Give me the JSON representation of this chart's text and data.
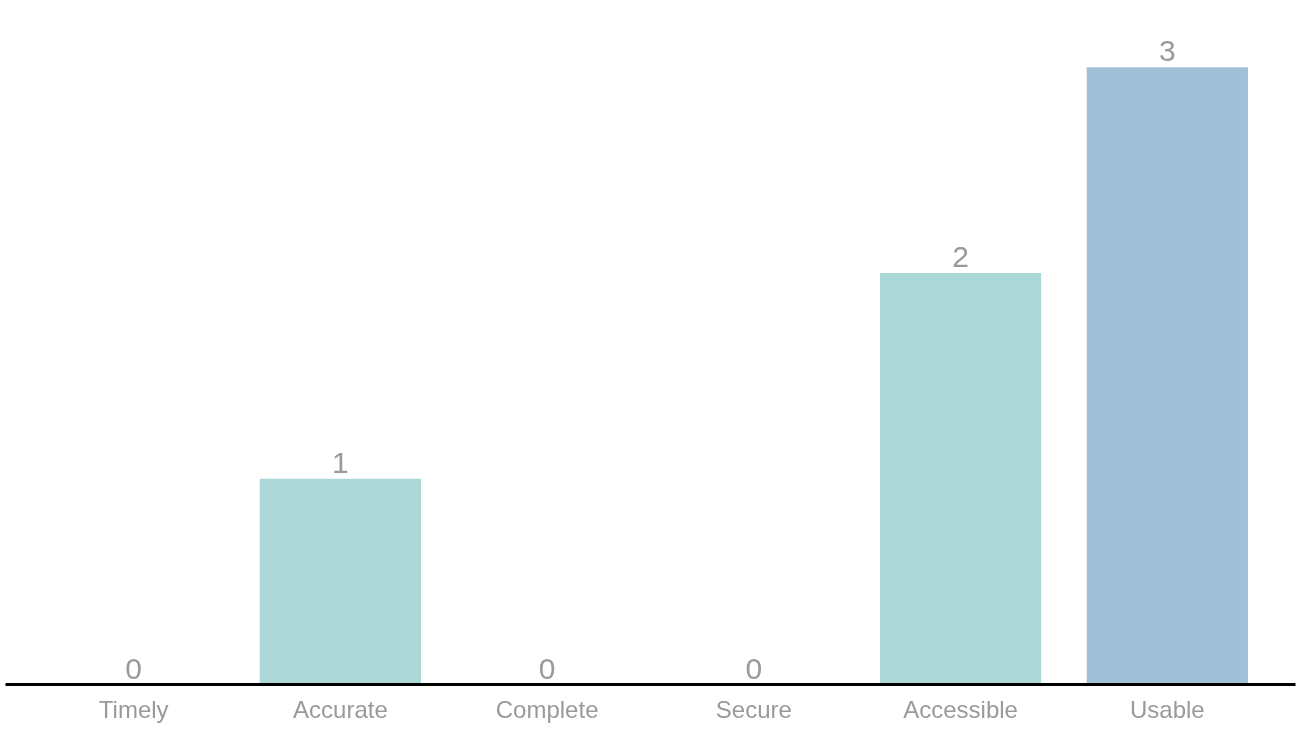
{
  "chart_data": {
    "type": "bar",
    "categories": [
      "Timely",
      "Accurate",
      "Complete",
      "Secure",
      "Accessible",
      "Usable"
    ],
    "values": [
      0,
      1,
      0,
      0,
      2,
      3
    ],
    "colors": [
      "#acd8d8",
      "#acd8d8",
      "#acd8d8",
      "#acd8d8",
      "#acd8d8",
      "#a0c0d8"
    ],
    "data_labels": true
  }
}
